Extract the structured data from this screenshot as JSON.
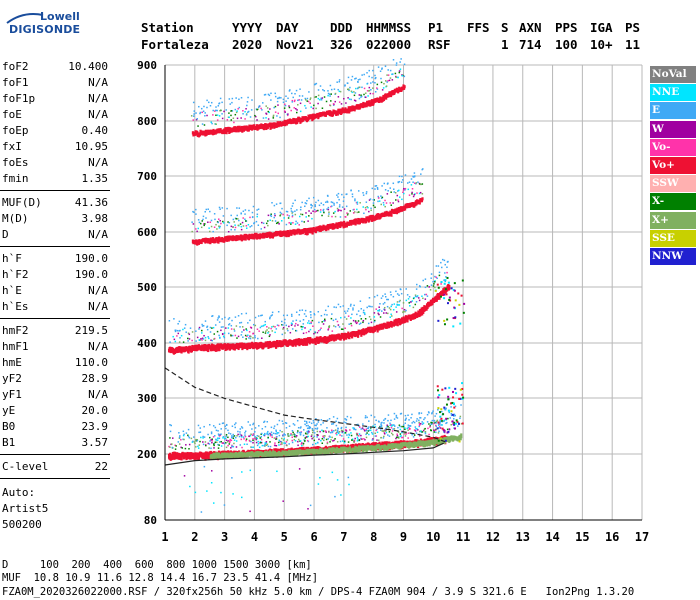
{
  "logo": {
    "line1": "Lowell",
    "line2": "DIGISONDE"
  },
  "header": {
    "row1": [
      "Station",
      "YYYY",
      "DAY",
      "DDD",
      "HHMMSS",
      "P1",
      "FFS",
      "S",
      "AXN",
      "PPS",
      "IGA",
      "PS"
    ],
    "row2": [
      "Fortaleza",
      "2020",
      "Nov21",
      "326",
      "022000",
      "RSF",
      "1",
      "714",
      "100",
      "10+",
      "11"
    ]
  },
  "params": [
    {
      "name": "foF2",
      "value": "10.400"
    },
    {
      "name": "foF1",
      "value": "N/A"
    },
    {
      "name": "foF1p",
      "value": "N/A"
    },
    {
      "name": "foE",
      "value": "N/A"
    },
    {
      "name": "foEp",
      "value": "0.40"
    },
    {
      "name": "fxI",
      "value": "10.95"
    },
    {
      "name": "foEs",
      "value": "N/A"
    },
    {
      "name": "fmin",
      "value": "1.35"
    },
    {
      "name": "MUF(D)",
      "value": "41.36"
    },
    {
      "name": "M(D)",
      "value": "3.98"
    },
    {
      "name": "D",
      "value": "N/A"
    },
    {
      "name": "h`F",
      "value": "190.0"
    },
    {
      "name": "h`F2",
      "value": "190.0"
    },
    {
      "name": "h`E",
      "value": "N/A"
    },
    {
      "name": "h`Es",
      "value": "N/A"
    },
    {
      "name": "hmF2",
      "value": "219.5"
    },
    {
      "name": "hmF1",
      "value": "N/A"
    },
    {
      "name": "hmE",
      "value": "110.0"
    },
    {
      "name": "yF2",
      "value": "28.9"
    },
    {
      "name": "yF1",
      "value": "N/A"
    },
    {
      "name": "yE",
      "value": "20.0"
    },
    {
      "name": "B0",
      "value": "23.9"
    },
    {
      "name": "B1",
      "value": "3.57"
    },
    {
      "name": "C-level",
      "value": "22"
    }
  ],
  "auto": [
    "Auto:",
    "Artist5",
    "500200"
  ],
  "legend": [
    {
      "label": "NoVal",
      "color": "#808080",
      "text": "#ffffff"
    },
    {
      "label": "NNE",
      "color": "#00e5ff",
      "text": "#ffffff"
    },
    {
      "label": "E",
      "color": "#3fa9f5",
      "text": "#ffffff"
    },
    {
      "label": "W",
      "color": "#a000a0",
      "text": "#ffffff"
    },
    {
      "label": "Vo-",
      "color": "#ff33aa",
      "text": "#ffffff"
    },
    {
      "label": "Vo+",
      "color": "#ee1133",
      "text": "#ffffff"
    },
    {
      "label": "SSW",
      "color": "#ffb0b0",
      "text": "#ffffff"
    },
    {
      "label": "X-",
      "color": "#008000",
      "text": "#ffffff"
    },
    {
      "label": "X+",
      "color": "#80b060",
      "text": "#ffffff"
    },
    {
      "label": "SSE",
      "color": "#c8d000",
      "text": "#ffffff"
    },
    {
      "label": "NNW",
      "color": "#2020d0",
      "text": "#ffffff"
    }
  ],
  "footer": {
    "distance_row": "D     100  200  400  600  800 1000 1500 3000 [km]",
    "muf_row": "MUF  10.8 10.9 11.6 12.8 14.4 16.7 23.5 41.4 [MHz]",
    "info_row": "FZA0M_2020326022000.RSF / 320fx256h 50 kHz 5.0 km / DPS-4 FZA0M 904 / 3.9 S 321.6 E   Ion2Png 1.3.20"
  },
  "chart_data": {
    "type": "scatter",
    "xlim": [
      1,
      17
    ],
    "ylim": [
      80,
      900
    ],
    "xticks": [
      "1",
      "2",
      "3",
      "4",
      "5",
      "6",
      "7",
      "8",
      "9",
      "10",
      "11",
      "12",
      "13",
      "14",
      "15",
      "16",
      "17"
    ],
    "yticks": [
      "80",
      "200",
      "300",
      "400",
      "500",
      "600",
      "700",
      "800",
      "900"
    ],
    "grid": true,
    "legend_position": "right",
    "traces": [
      {
        "name": "O-trace 1st hop",
        "color": "#ee1133",
        "x_range": [
          1.1,
          10.4
        ],
        "y": [
          195,
          196,
          198,
          200,
          203,
          206,
          210,
          214,
          218,
          225
        ],
        "thickness": 7
      },
      {
        "name": "X-trace 1st hop",
        "color": "#80b060",
        "x_range": [
          2.5,
          10.9
        ],
        "y": [
          196,
          197,
          199,
          201,
          204,
          207,
          211,
          215,
          220,
          230
        ],
        "thickness": 5
      },
      {
        "name": "2nd hop",
        "color": "#ee1133",
        "x_range": [
          1.1,
          10.5
        ],
        "y": [
          385,
          390,
          392,
          395,
          400,
          405,
          415,
          430,
          450,
          500
        ],
        "thickness": 6
      },
      {
        "name": "3rd hop",
        "color": "#ee1133",
        "x_range": [
          1.9,
          9.6
        ],
        "y": [
          580,
          585,
          590,
          595,
          600,
          610,
          620,
          635,
          655
        ],
        "thickness": 5
      },
      {
        "name": "4th hop",
        "color": "#ee1133",
        "x_range": [
          1.9,
          9.0
        ],
        "y": [
          775,
          780,
          785,
          790,
          800,
          810,
          820,
          835,
          860
        ],
        "thickness": 5
      }
    ],
    "profile_solid": {
      "x": [
        1.0,
        2,
        3,
        4,
        5,
        6,
        7,
        8,
        9,
        10,
        10.35
      ],
      "y": [
        180,
        188,
        191,
        193,
        195,
        198,
        200,
        203,
        206,
        211,
        219.5
      ]
    },
    "profile_dashed": {
      "x": [
        1.0,
        2,
        3,
        4,
        5,
        6,
        7,
        8,
        9,
        10,
        10.4
      ],
      "y": [
        355,
        320,
        300,
        285,
        270,
        262,
        255,
        248,
        240,
        230,
        222
      ]
    }
  }
}
